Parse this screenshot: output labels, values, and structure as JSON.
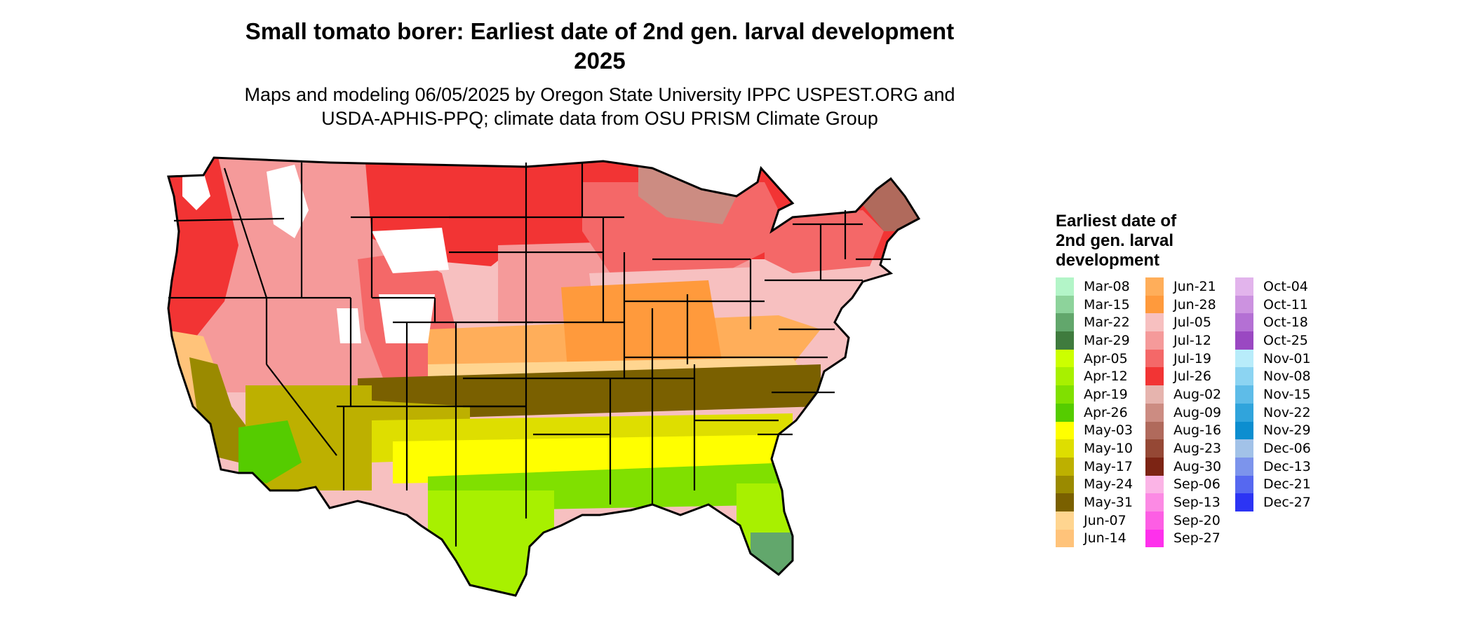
{
  "header": {
    "title_line1": "Small tomato borer: Earliest date of 2nd gen. larval development",
    "title_line2": "2025",
    "subtitle_line1": "Maps and modeling 06/05/2025 by Oregon State University IPPC USPEST.ORG and",
    "subtitle_line2": "USDA-APHIS-PPQ; climate data from OSU PRISM Climate Group"
  },
  "legend": {
    "title": "Earliest date of 2nd gen. larval development",
    "items": [
      {
        "label": "Mar-08",
        "color": "#b3f5c8"
      },
      {
        "label": "Mar-15",
        "color": "#8dd39b"
      },
      {
        "label": "Mar-22",
        "color": "#62a76c"
      },
      {
        "label": "Mar-29",
        "color": "#3f7b3e"
      },
      {
        "label": "Apr-05",
        "color": "#ccff00"
      },
      {
        "label": "Apr-12",
        "color": "#a8f000"
      },
      {
        "label": "Apr-19",
        "color": "#80e000"
      },
      {
        "label": "Apr-26",
        "color": "#55cc00"
      },
      {
        "label": "May-03",
        "color": "#ffff00"
      },
      {
        "label": "May-10",
        "color": "#dede00"
      },
      {
        "label": "May-17",
        "color": "#bdb000"
      },
      {
        "label": "May-24",
        "color": "#9a8a00"
      },
      {
        "label": "May-31",
        "color": "#7a6000"
      },
      {
        "label": "Jun-07",
        "color": "#ffd590"
      },
      {
        "label": "Jun-14",
        "color": "#ffc37a"
      },
      {
        "label": "Jun-21",
        "color": "#ffae5a"
      },
      {
        "label": "Jun-28",
        "color": "#ff9a3c"
      },
      {
        "label": "Jul-05",
        "color": "#f7c0c0"
      },
      {
        "label": "Jul-12",
        "color": "#f59a9a"
      },
      {
        "label": "Jul-19",
        "color": "#f46868"
      },
      {
        "label": "Jul-26",
        "color": "#f23434"
      },
      {
        "label": "Aug-02",
        "color": "#e6b4ae"
      },
      {
        "label": "Aug-09",
        "color": "#cc8c82"
      },
      {
        "label": "Aug-16",
        "color": "#b06a5c"
      },
      {
        "label": "Aug-23",
        "color": "#954835"
      },
      {
        "label": "Aug-30",
        "color": "#7c2414"
      },
      {
        "label": "Sep-06",
        "color": "#fbb4e6"
      },
      {
        "label": "Sep-13",
        "color": "#fc8ae4"
      },
      {
        "label": "Sep-20",
        "color": "#fd5ee4"
      },
      {
        "label": "Sep-27",
        "color": "#fe30ec"
      },
      {
        "label": "Oct-04",
        "color": "#e2b4ec"
      },
      {
        "label": "Oct-11",
        "color": "#cc92e0"
      },
      {
        "label": "Oct-18",
        "color": "#b470d4"
      },
      {
        "label": "Oct-25",
        "color": "#9a48c2"
      },
      {
        "label": "Nov-01",
        "color": "#b8ecfa"
      },
      {
        "label": "Nov-08",
        "color": "#8cd4f2"
      },
      {
        "label": "Nov-15",
        "color": "#5ebce8"
      },
      {
        "label": "Nov-22",
        "color": "#30a4dc"
      },
      {
        "label": "Nov-29",
        "color": "#0c8ed0"
      },
      {
        "label": "Dec-06",
        "color": "#a2c2e8"
      },
      {
        "label": "Dec-13",
        "color": "#7c94ec"
      },
      {
        "label": "Dec-21",
        "color": "#5668f0"
      },
      {
        "label": "Dec-27",
        "color": "#2c34f4"
      }
    ]
  },
  "map": {
    "outline_color": "#000000",
    "no_data_color": "#ffffff",
    "regions": [
      {
        "name": "pacific-northwest",
        "label": "Jul-26"
      },
      {
        "name": "pnw-mountains",
        "label": "Aug-16"
      },
      {
        "name": "northern-rockies",
        "label": "Jul-12"
      },
      {
        "name": "northern-plains",
        "label": "Jul-26"
      },
      {
        "name": "upper-midwest-great-lakes",
        "label": "Jul-19"
      },
      {
        "name": "northeast",
        "label": "Jul-19"
      },
      {
        "name": "northern-maine",
        "label": "Aug-16"
      },
      {
        "name": "northern-michigan-wisconsin",
        "label": "Aug-09"
      },
      {
        "name": "central-plains-north",
        "label": "Jul-12"
      },
      {
        "name": "midwest",
        "label": "Jul-05"
      },
      {
        "name": "great-basin",
        "label": "Jul-19"
      },
      {
        "name": "central-rockies",
        "label": "Jul-12"
      },
      {
        "name": "central-plains",
        "label": "Jun-21"
      },
      {
        "name": "ohio-valley",
        "label": "Jun-28"
      },
      {
        "name": "california-coast",
        "label": "Jun-14"
      },
      {
        "name": "central-valley",
        "label": "May-24"
      },
      {
        "name": "southern-plains",
        "label": "Jun-07"
      },
      {
        "name": "southeast-upper",
        "label": "May-31"
      },
      {
        "name": "southwest-desert",
        "label": "May-17"
      },
      {
        "name": "desert-low",
        "label": "Apr-26"
      },
      {
        "name": "west-texas",
        "label": "May-17"
      },
      {
        "name": "central-texas",
        "label": "May-03"
      },
      {
        "name": "gulf-inland",
        "label": "May-03"
      },
      {
        "name": "gulf-coast",
        "label": "Apr-19"
      },
      {
        "name": "south-texas",
        "label": "Apr-12"
      },
      {
        "name": "florida",
        "label": "Apr-12"
      },
      {
        "name": "south-florida",
        "label": "Mar-22"
      },
      {
        "name": "high-mountain-no-data",
        "label": "none"
      }
    ]
  }
}
